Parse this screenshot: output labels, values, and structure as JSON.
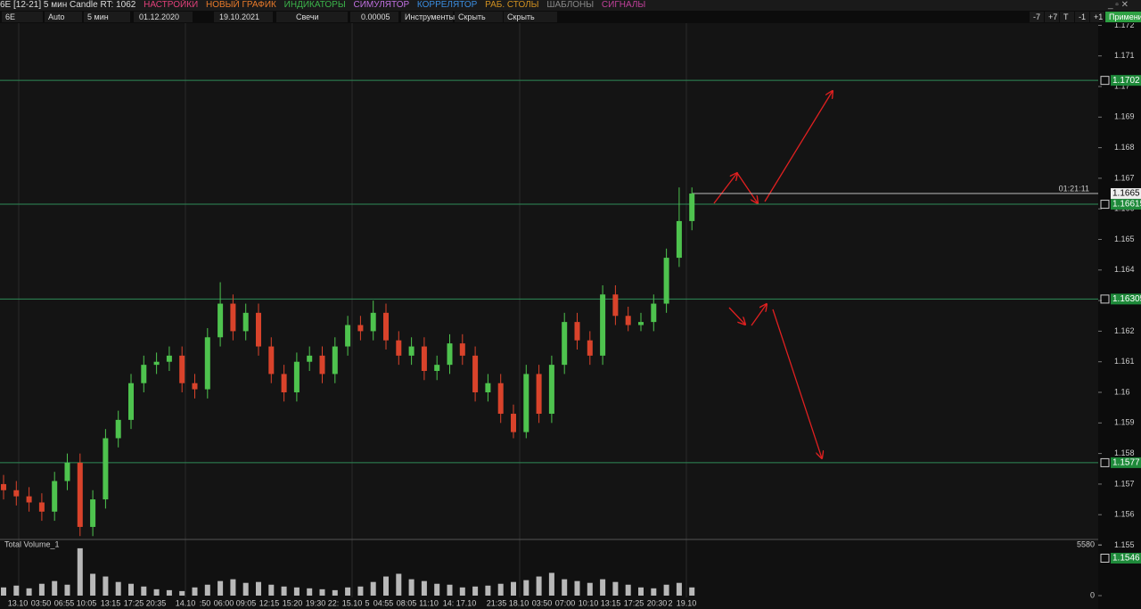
{
  "toolbar": {
    "title": "6E [12-21] 5 мин Candle RT: 1062",
    "menu": [
      "НАСТРОЙКИ",
      "НОВЫЙ ГРАФИК",
      "ИНДИКАТОРЫ",
      "СИМУЛЯТОР",
      "КОРРЕЛЯТОР",
      "РАБ. СТОЛЫ",
      "ШАБЛОНЫ",
      "СИГНАЛЫ"
    ],
    "symbol": "6E",
    "scale": "Auto",
    "timeframe": "5 мин",
    "date_from": "01.12.2020",
    "date_to": "19.10.2021",
    "chart_style": "Свечи",
    "tick_size": "0.00005",
    "buttons": [
      "Инструменты",
      "Скрыть рис.",
      "Скрыть линии"
    ],
    "right_buttons": [
      "-7",
      "+7",
      "T",
      "-1",
      "+1",
      "Применить"
    ]
  },
  "chart_data": {
    "type": "candlestick",
    "up_color": "#4ec34e",
    "down_color": "#d9432b",
    "open": [
      1.157,
      1.1568,
      1.1566,
      1.1564,
      1.1561,
      1.1571,
      1.1577,
      1.1556,
      1.1565,
      1.1585,
      1.1591,
      1.1603,
      1.1609,
      1.161,
      1.1612,
      1.1603,
      1.1601,
      1.1618,
      1.1629,
      1.162,
      1.1626,
      1.1615,
      1.1606,
      1.16,
      1.161,
      1.1612,
      1.1606,
      1.1615,
      1.1622,
      1.162,
      1.1626,
      1.1617,
      1.1612,
      1.1615,
      1.1607,
      1.1609,
      1.1616,
      1.1612,
      1.16,
      1.1603,
      1.1593,
      1.1587,
      1.1606,
      1.1593,
      1.1609,
      1.1623,
      1.1617,
      1.1612,
      1.1632,
      1.1625,
      1.1622,
      1.1623,
      1.1629,
      1.1644,
      1.1656
    ],
    "high": [
      1.1573,
      1.1571,
      1.1569,
      1.1567,
      1.1574,
      1.158,
      1.158,
      1.1568,
      1.1588,
      1.1594,
      1.1606,
      1.1612,
      1.1613,
      1.1615,
      1.1615,
      1.1606,
      1.1621,
      1.1636,
      1.1632,
      1.1629,
      1.1629,
      1.1618,
      1.1609,
      1.1613,
      1.1615,
      1.1615,
      1.1618,
      1.1625,
      1.1625,
      1.163,
      1.1629,
      1.162,
      1.1618,
      1.1618,
      1.1612,
      1.1619,
      1.1619,
      1.1615,
      1.1606,
      1.1606,
      1.1596,
      1.1609,
      1.1609,
      1.1612,
      1.1626,
      1.1626,
      1.162,
      1.1635,
      1.1635,
      1.1628,
      1.1626,
      1.1632,
      1.1647,
      1.1667,
      1.1667
    ],
    "low": [
      1.1565,
      1.1563,
      1.1561,
      1.1558,
      1.1558,
      1.1568,
      1.1553,
      1.1553,
      1.1562,
      1.1582,
      1.1588,
      1.16,
      1.1606,
      1.1607,
      1.16,
      1.1598,
      1.1598,
      1.1615,
      1.1617,
      1.1617,
      1.1612,
      1.1603,
      1.1597,
      1.1597,
      1.1607,
      1.1603,
      1.1603,
      1.1612,
      1.1617,
      1.1617,
      1.1614,
      1.1609,
      1.1609,
      1.1604,
      1.1604,
      1.1606,
      1.1609,
      1.1597,
      1.1597,
      1.159,
      1.1585,
      1.1585,
      1.159,
      1.159,
      1.1606,
      1.1614,
      1.1609,
      1.1609,
      1.1622,
      1.162,
      1.162,
      1.162,
      1.1626,
      1.1641,
      1.1653
    ],
    "close": [
      1.1568,
      1.1566,
      1.1564,
      1.1561,
      1.1571,
      1.1577,
      1.1556,
      1.1565,
      1.1585,
      1.1591,
      1.1603,
      1.1609,
      1.161,
      1.1612,
      1.1603,
      1.1601,
      1.1618,
      1.1629,
      1.162,
      1.1626,
      1.1615,
      1.1606,
      1.16,
      1.161,
      1.1612,
      1.1606,
      1.1615,
      1.1622,
      1.162,
      1.1626,
      1.1617,
      1.1612,
      1.1615,
      1.1607,
      1.1609,
      1.1616,
      1.1612,
      1.16,
      1.1603,
      1.1593,
      1.1587,
      1.1606,
      1.1593,
      1.1609,
      1.1623,
      1.1617,
      1.1612,
      1.1632,
      1.1625,
      1.1622,
      1.1623,
      1.1629,
      1.1644,
      1.1656,
      1.1665
    ],
    "ylim": [
      1.15519,
      1.17207
    ],
    "yticks": [
      1.155,
      1.156,
      1.157,
      1.158,
      1.159,
      1.16,
      1.161,
      1.162,
      1.163,
      1.164,
      1.165,
      1.166,
      1.167,
      1.168,
      1.169,
      1.17,
      1.171,
      1.172
    ],
    "levels": [
      1.1702,
      1.16615,
      1.16305,
      1.1577
    ],
    "last_price": 1.1665,
    "timer": "01:21:11",
    "time_labels": [
      "13.10",
      "03:50",
      "06:55",
      "10:05",
      "13:15",
      "17:25",
      "20:35",
      "14.10",
      ":50",
      "06:00",
      "09:05",
      "12:15",
      "15:20",
      "19:30",
      "22:",
      "15.10",
      "5",
      "04:55",
      "08:05",
      "11:10",
      "14:",
      "17.10",
      "21:35",
      "18.10",
      "03:50",
      "07:00",
      "10:10",
      "13:15",
      "17:25",
      "20:30",
      "2",
      "19.10"
    ],
    "volume": {
      "title": "Total Volume_1",
      "color": "#b8b8b8",
      "values": [
        900,
        1100,
        800,
        1300,
        1600,
        1200,
        5200,
        2400,
        2100,
        1500,
        1300,
        1000,
        700,
        600,
        500,
        900,
        1200,
        1600,
        1800,
        1400,
        1500,
        1200,
        1000,
        900,
        800,
        700,
        600,
        900,
        1000,
        1500,
        2100,
        2400,
        1800,
        1600,
        1300,
        1200,
        900,
        1000,
        1100,
        1300,
        1500,
        1700,
        2100,
        2500,
        1800,
        1600,
        1400,
        1800,
        1500,
        1200,
        900,
        800,
        1200,
        1400,
        900
      ],
      "ylim": [
        0,
        6070
      ],
      "yticks": [
        0,
        5580
      ],
      "pane_price_label": 1.1546
    }
  }
}
